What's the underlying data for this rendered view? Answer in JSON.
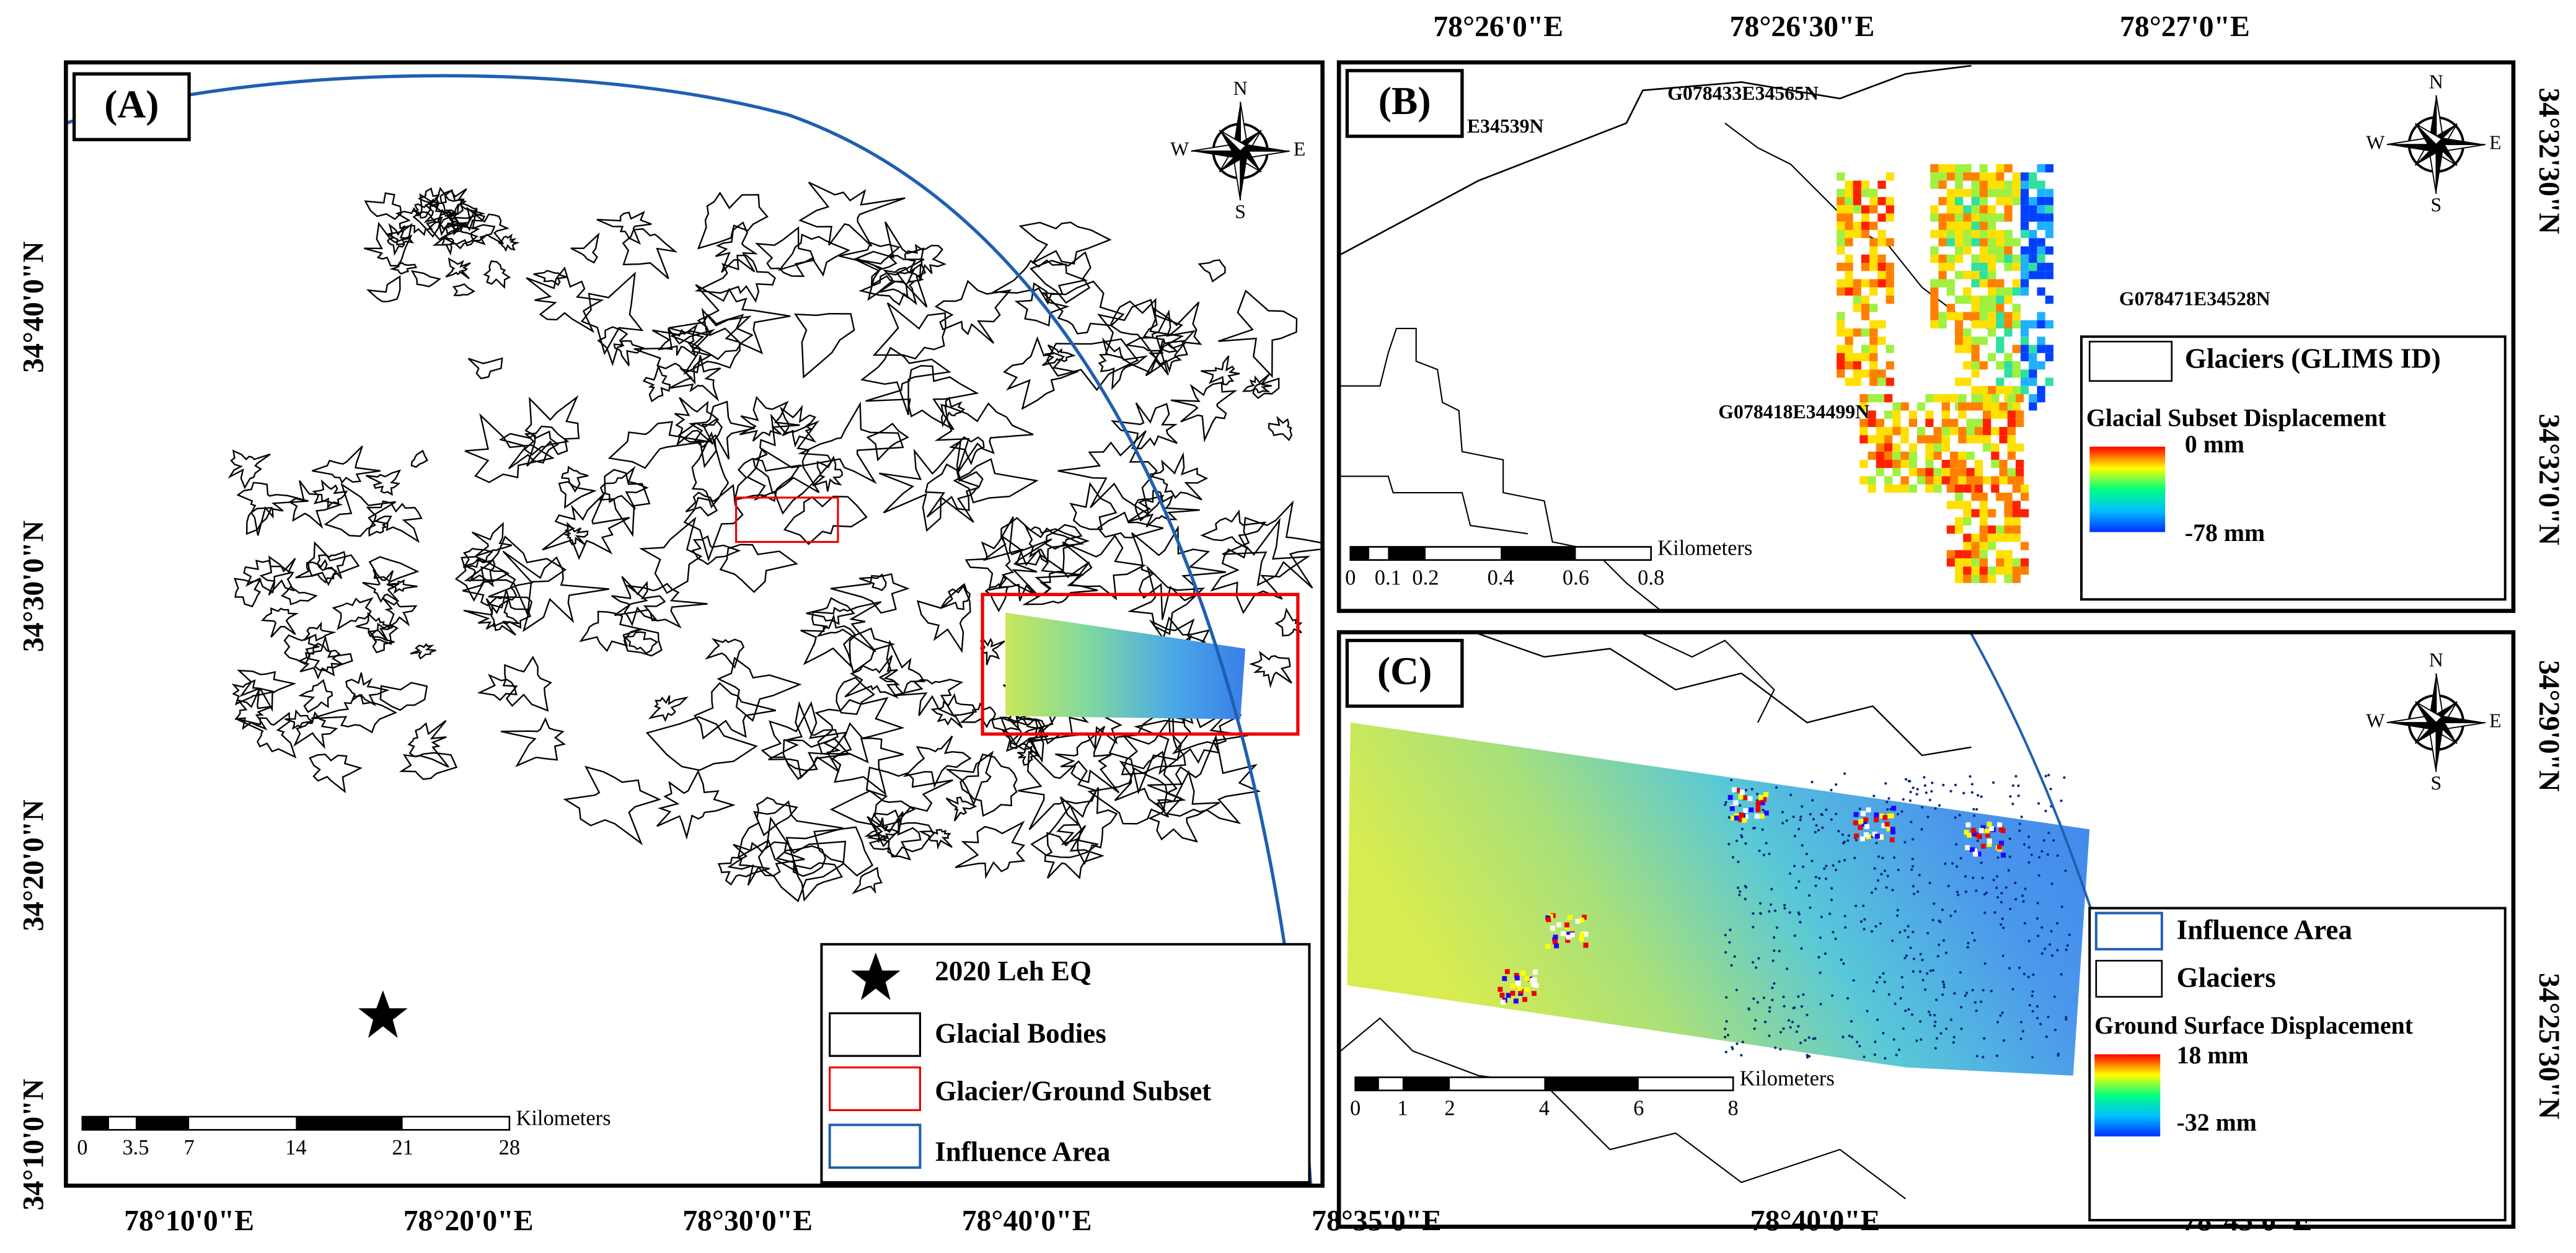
{
  "panels": [
    {
      "label": "(A)",
      "left_ticks": [
        "34°40'0\"N",
        "34°30'0\"N",
        "34°20'0\"N",
        "34°10'0\"N"
      ],
      "bottom_ticks": [
        "78°10'0\"E",
        "78°20'0\"E",
        "78°30'0\"E",
        "78°40'0\"E"
      ],
      "legend": [
        "2020 Leh EQ",
        "Glacial Bodies",
        "Glacier/Ground Subset",
        "Influence Area"
      ],
      "scale_bar": {
        "labels": [
          "0",
          "3.5",
          "7",
          "14",
          "21",
          "28"
        ],
        "unit": "Kilometers"
      },
      "compass": {
        "n": "N",
        "s": "S",
        "w": "W",
        "e": "E"
      }
    },
    {
      "label": "(B)",
      "top_ticks": [
        "78°26'0\"E",
        "78°26'30\"E",
        "78°27'0\"E"
      ],
      "right_ticks": [
        "34°32'30\"N",
        "34°32'0\"N"
      ],
      "glacier_ids": [
        "E34539N",
        "G078433E34565N",
        "G078471E34528N",
        "G078418E34499N"
      ],
      "legend": {
        "outline": "Glaciers (GLIMS ID)",
        "title": "Glacial Subset Displacement",
        "max": "0 mm",
        "min": "-78 mm"
      },
      "scale_bar": {
        "labels": [
          "0",
          "0.1",
          "0.2",
          "0.4",
          "0.6",
          "0.8"
        ],
        "unit": "Kilometers"
      },
      "compass": {
        "n": "N",
        "s": "S",
        "w": "W",
        "e": "E"
      }
    },
    {
      "label": "(C)",
      "bottom_ticks": [
        "78°35'0\"E",
        "78°40'0\"E",
        "78°45'0\"E"
      ],
      "right_ticks": [
        "34°29'0\"N",
        "34°25'30\"N"
      ],
      "legend": {
        "influence": "Influence Area",
        "glaciers": "Glaciers",
        "title": "Ground Surface Displacement",
        "max": "18 mm",
        "min": "-32 mm"
      },
      "scale_bar": {
        "labels": [
          "0",
          "1",
          "2",
          "4",
          "6",
          "8"
        ],
        "unit": "Kilometers"
      },
      "compass": {
        "n": "N",
        "s": "S",
        "w": "W",
        "e": "E"
      }
    }
  ]
}
